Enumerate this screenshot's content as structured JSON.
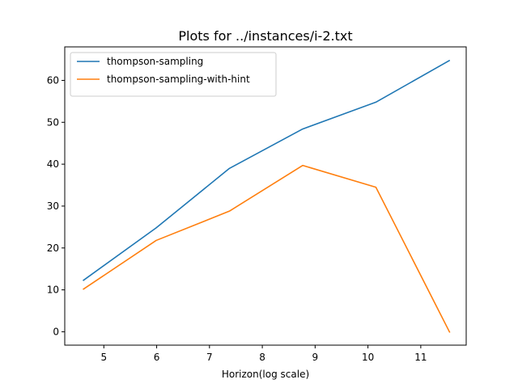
{
  "chart_data": {
    "type": "line",
    "title": "Plots for ../instances/i-2.txt",
    "xlabel": "Horizon(log scale)",
    "ylabel": "",
    "xlim": [
      4.26,
      11.86
    ],
    "ylim": [
      -3.2,
      68.0
    ],
    "x_ticks": [
      5,
      6,
      7,
      8,
      9,
      10,
      11
    ],
    "y_ticks": [
      0,
      10,
      20,
      30,
      40,
      50,
      60
    ],
    "grid": false,
    "legend_position": "top-left",
    "x": [
      4.605,
      5.991,
      7.378,
      8.764,
      10.15,
      11.55
    ],
    "series": [
      {
        "name": "thompson-sampling",
        "color": "#1f77b4",
        "values": [
          12.2,
          24.8,
          39.0,
          48.4,
          54.8,
          64.8
        ]
      },
      {
        "name": "thompson-sampling-with-hint",
        "color": "#ff7f0e",
        "values": [
          10.1,
          21.8,
          28.8,
          39.7,
          34.5,
          -0.2
        ]
      }
    ]
  }
}
